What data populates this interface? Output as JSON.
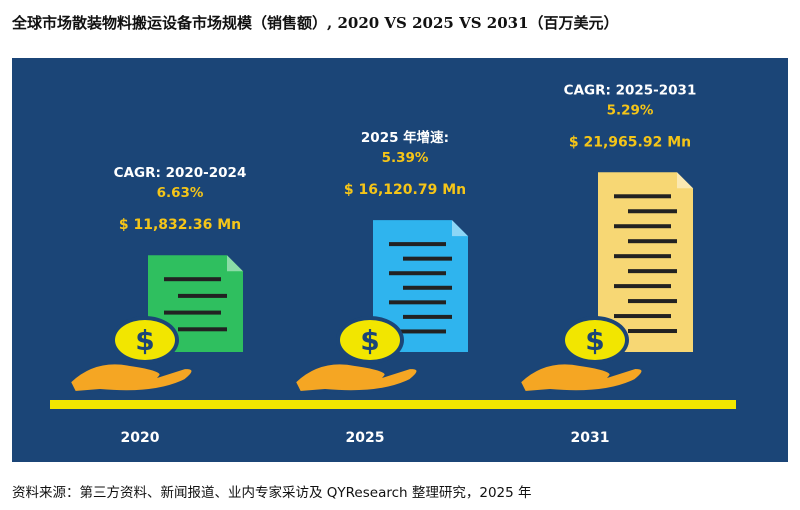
{
  "title": "全球市场散装物料搬运设备市场规模（销售额）, 2020 VS 2025 VS 2031（百万美元）",
  "source": "资料来源：第三方资料、新闻报道、业内专家采访及 QYResearch 整理研究，2025 年",
  "colors": {
    "background": "#1b4577",
    "baseline": "#f2e600",
    "label_white": "#ffffff",
    "label_gold": "#f5c518",
    "coin": "#f2e600",
    "hand": "#f5a623"
  },
  "chart_data": {
    "type": "bar",
    "title": "全球市场散装物料搬运设备市场规模（销售额）, 2020 VS 2025 VS 2031（百万美元）",
    "categories": [
      "2020",
      "2025",
      "2031"
    ],
    "values": [
      11832.36,
      16120.79,
      21965.92
    ],
    "value_labels": [
      "$ 11,832.36 Mn",
      "$ 16,120.79 Mn",
      "$ 21,965.92 Mn"
    ],
    "bar_colors": [
      "#2fbf5f",
      "#2fb4ee",
      "#f7d774"
    ],
    "annotations": [
      {
        "label": "CAGR: 2020-2024",
        "value": "6.63%"
      },
      {
        "label": "2025 年增速:",
        "value": "5.39%"
      },
      {
        "label": "CAGR: 2025-2031",
        "value": "5.29%"
      }
    ],
    "icons": [
      "document-icon",
      "coin-dollar-icon",
      "hand-icon"
    ]
  }
}
